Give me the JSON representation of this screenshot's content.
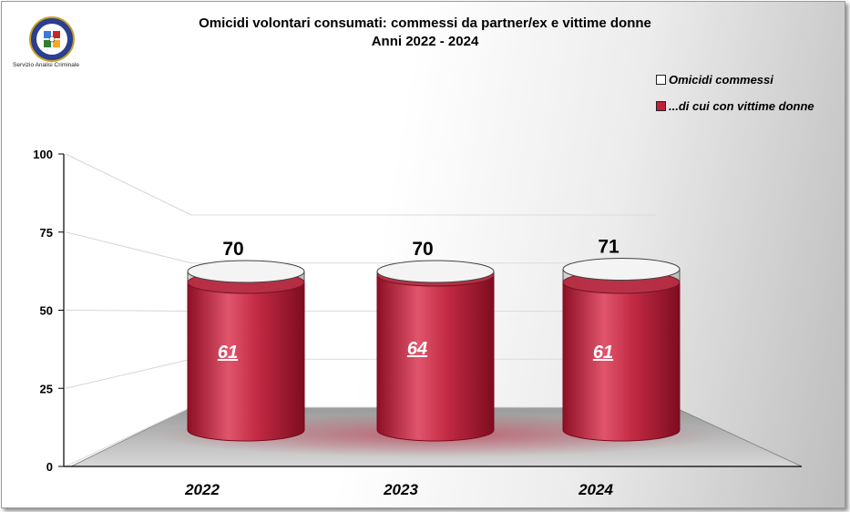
{
  "chart_data": {
    "type": "bar",
    "title": "Omicidi volontari consumati: commessi da partner/ex e vittime donne",
    "subtitle": "Anni 2022 - 2024",
    "categories": [
      "2022",
      "2023",
      "2024"
    ],
    "series": [
      {
        "name": "Omicidi commessi",
        "values": [
          70,
          70,
          71
        ],
        "color": "#ffffff"
      },
      {
        "name": "...di cui con vittime donne",
        "values": [
          61,
          64,
          61
        ],
        "color": "#c0203a"
      }
    ],
    "ylim": [
      0,
      100
    ],
    "yticks": [
      "0",
      "25",
      "50",
      "75",
      "100"
    ],
    "legend_position": "top-right",
    "grid": true
  },
  "header": {
    "title": "Omicidi volontari consumati: commessi da partner/ex e vittime donne",
    "subtitle": "Anni 2022 - 2024"
  },
  "logo": {
    "caption": "Servizio Analisi Criminale",
    "icon": "police-emblem-icon"
  },
  "legend": {
    "items": [
      {
        "label": "Omicidi commessi",
        "color": "#ffffff"
      },
      {
        "label": "...di cui con vittime donne",
        "color": "#c0203a"
      }
    ]
  }
}
